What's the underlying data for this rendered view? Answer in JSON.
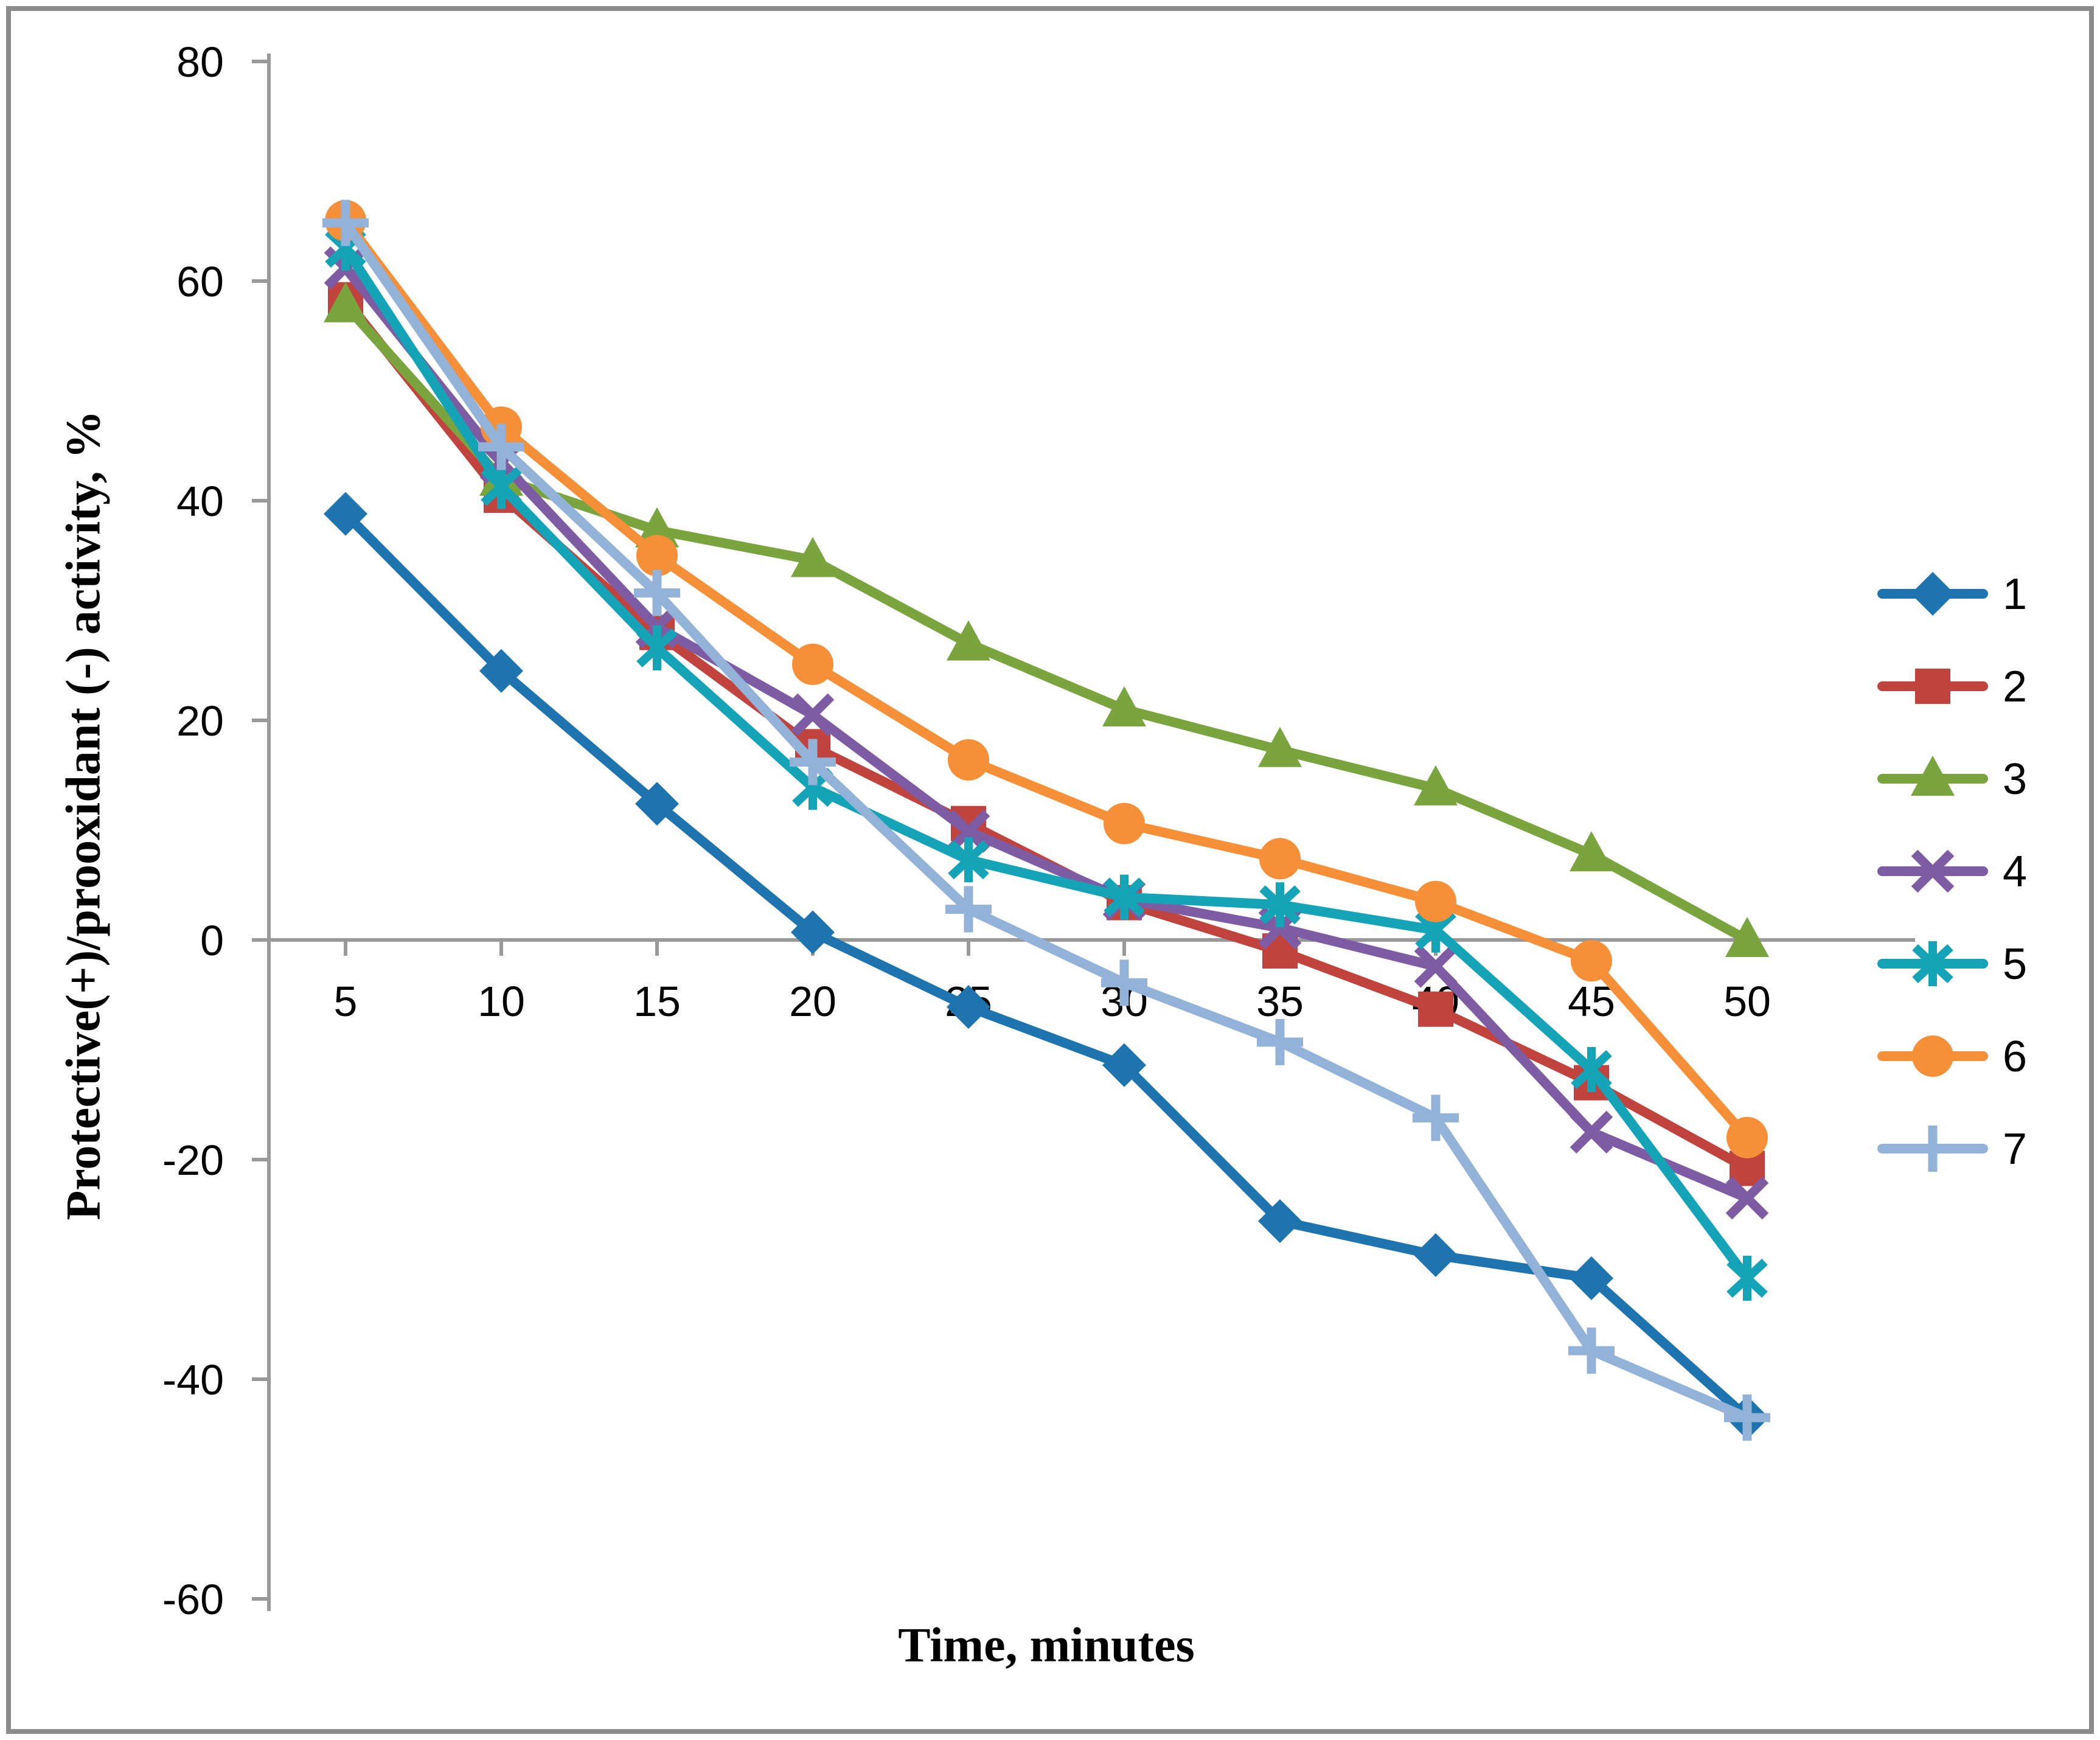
{
  "figure": {
    "background": "#ffffff",
    "border_color": "#8c8c8c",
    "axis_color": "#999999",
    "text_color": "#000000"
  },
  "chart_data": {
    "type": "line",
    "title": "",
    "xlabel": "Time, minutes",
    "ylabel": "Protective(+)/prooxidant (-)  activity, %",
    "x": [
      5,
      10,
      15,
      20,
      25,
      30,
      35,
      40,
      45,
      50
    ],
    "xticks": [
      5,
      10,
      15,
      20,
      25,
      30,
      35,
      40,
      45,
      50
    ],
    "yticks": [
      80,
      60,
      40,
      20,
      0,
      -20,
      -40,
      -60
    ],
    "ylim": [
      -60,
      80
    ],
    "xlim": [
      2.5,
      52.5
    ],
    "grid": false,
    "legend_position": "right",
    "series": [
      {
        "name": "1",
        "marker": "diamond",
        "color": "#1E74AE",
        "values": [
          38.8,
          24.5,
          12.4,
          0.7,
          -6.1,
          -11.4,
          -25.6,
          -28.7,
          -30.8,
          -43.5
        ]
      },
      {
        "name": "2",
        "marker": "square",
        "color": "#C0433E",
        "values": [
          58.3,
          40.5,
          28.0,
          17.6,
          10.6,
          3.4,
          -1.0,
          -6.3,
          -13.0,
          -20.8
        ]
      },
      {
        "name": "3",
        "marker": "triangle",
        "color": "#7AA43D",
        "values": [
          57.8,
          42.0,
          37.3,
          34.6,
          27.0,
          21.0,
          17.3,
          13.8,
          7.8,
          0.0
        ]
      },
      {
        "name": "4",
        "marker": "x",
        "color": "#7D5CA4",
        "values": [
          61.2,
          43.5,
          28.5,
          20.5,
          9.9,
          3.7,
          1.1,
          -2.4,
          -17.5,
          -23.5
        ]
      },
      {
        "name": "5",
        "marker": "asterisk",
        "color": "#14A3B7",
        "values": [
          63.0,
          41.3,
          26.6,
          13.9,
          7.3,
          3.9,
          3.2,
          0.9,
          -11.8,
          -30.8
        ]
      },
      {
        "name": "6",
        "marker": "circle",
        "color": "#F69038",
        "values": [
          65.5,
          46.7,
          35.0,
          25.1,
          16.4,
          10.6,
          7.4,
          3.5,
          -1.9,
          -18.0
        ]
      },
      {
        "name": "7",
        "marker": "plus",
        "color": "#93B2D8",
        "values": [
          65.3,
          44.9,
          31.6,
          16.2,
          2.8,
          -3.9,
          -9.3,
          -16.2,
          -37.4,
          -43.5
        ]
      }
    ]
  }
}
